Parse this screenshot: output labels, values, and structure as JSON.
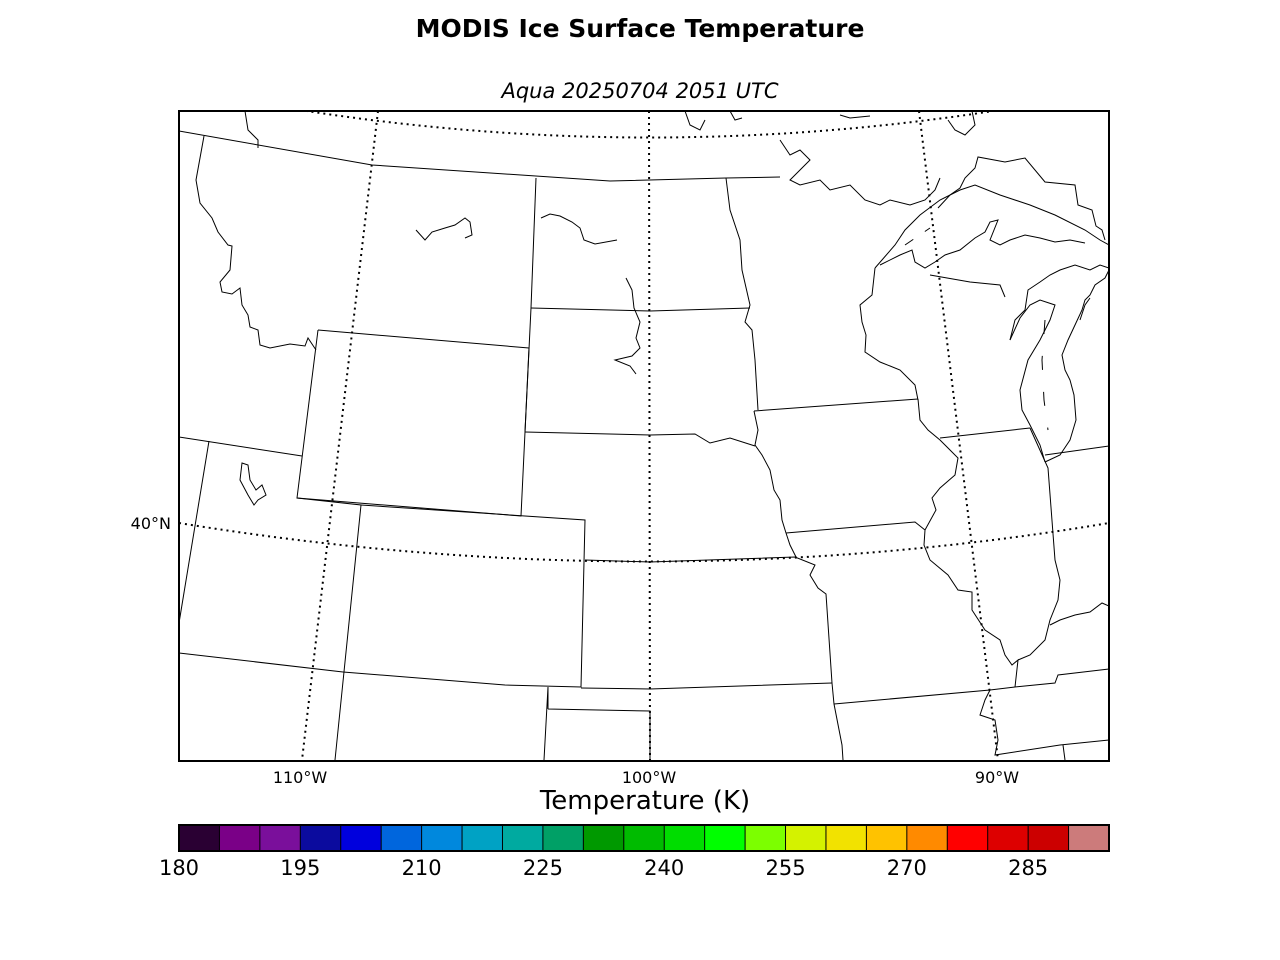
{
  "figure": {
    "title": "MODIS Ice Surface Temperature",
    "subtitle": "Aqua 20250704 2051 UTC"
  },
  "map": {
    "region": "U.S. Northern/Central Plains and Upper Midwest",
    "projection": "Lambert conformal",
    "graticule": {
      "latitude_labels": [
        "40°N"
      ],
      "longitude_labels": [
        "110°W",
        "100°W",
        "90°W"
      ],
      "line_style": "dotted"
    },
    "data_shading": "none visible"
  },
  "colorbar": {
    "label": "Temperature (K)",
    "min": 180,
    "max": 295,
    "step": 5,
    "tick_labels": [
      "180",
      "195",
      "210",
      "225",
      "240",
      "255",
      "270",
      "285"
    ],
    "colors": [
      "#2a0033",
      "#7a0087",
      "#7a0f9b",
      "#0b0b9e",
      "#0000dd",
      "#0066dd",
      "#0088dd",
      "#00a2c4",
      "#00aaa0",
      "#00a066",
      "#009900",
      "#00bb00",
      "#00dd00",
      "#00ff00",
      "#7cff00",
      "#d4f200",
      "#f2e200",
      "#ffc200",
      "#ff8a00",
      "#ff0000",
      "#dd0000",
      "#cc0000",
      "#cc7b7b"
    ]
  }
}
